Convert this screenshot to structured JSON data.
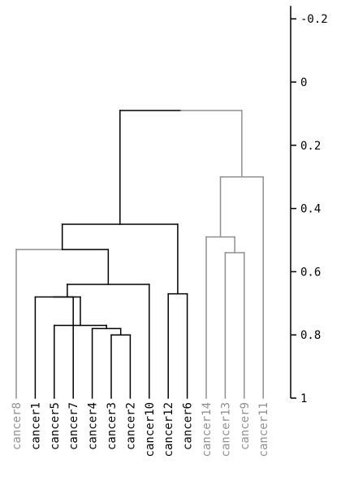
{
  "chart_data": {
    "type": "dendrogram",
    "title": "",
    "xlabel": "",
    "ylabel": "",
    "y_axis": {
      "position": "right",
      "ticks": [
        -0.2,
        0,
        0.2,
        0.4,
        0.6,
        0.8,
        1
      ],
      "tick_labels": [
        "-0.2",
        "0",
        "0.2",
        "0.4",
        "0.6",
        "0.8",
        "1"
      ],
      "range": [
        -0.2,
        1
      ],
      "inverted": true
    },
    "leaves": [
      {
        "label": "cancer8",
        "cluster": "gray"
      },
      {
        "label": "cancer1",
        "cluster": "black"
      },
      {
        "label": "cancer5",
        "cluster": "black"
      },
      {
        "label": "cancer7",
        "cluster": "black"
      },
      {
        "label": "cancer4",
        "cluster": "black"
      },
      {
        "label": "cancer3",
        "cluster": "black"
      },
      {
        "label": "cancer2",
        "cluster": "black"
      },
      {
        "label": "cancer10",
        "cluster": "black"
      },
      {
        "label": "cancer12",
        "cluster": "black"
      },
      {
        "label": "cancer6",
        "cluster": "black"
      },
      {
        "label": "cancer14",
        "cluster": "gray"
      },
      {
        "label": "cancer13",
        "cluster": "gray"
      },
      {
        "label": "cancer9",
        "cluster": "gray"
      },
      {
        "label": "cancer11",
        "cluster": "gray"
      }
    ],
    "leaf_height": 1,
    "merges": [
      {
        "id": "m1",
        "left": "cancer3",
        "right": "cancer2",
        "height": 0.8,
        "color": "black"
      },
      {
        "id": "m2",
        "left": "cancer4",
        "right": "m1",
        "height": 0.78,
        "color": "black"
      },
      {
        "id": "m3",
        "left": "cancer5",
        "right": "m2",
        "height": 0.77,
        "color": "black"
      },
      {
        "id": "m4",
        "left": "cancer12",
        "right": "cancer6",
        "height": 0.67,
        "color": "black"
      },
      {
        "id": "m5",
        "left": "cancer13",
        "right": "cancer9",
        "height": 0.54,
        "color": "gray"
      },
      {
        "id": "m6",
        "left": "cancer1",
        "right": "cancer7",
        "height": 0.68,
        "color": "black"
      },
      {
        "id": "m7",
        "left": "m6",
        "right": "m3",
        "height": 0.68,
        "color": "black"
      },
      {
        "id": "m8",
        "left": "m7",
        "right": "cancer10",
        "height": 0.64,
        "color": "black"
      },
      {
        "id": "m9",
        "left": "cancer8",
        "right": "m8",
        "height": 0.53,
        "color": "gray_black"
      },
      {
        "id": "m10",
        "left": "m9",
        "right": "m4",
        "height": 0.45,
        "color": "black"
      },
      {
        "id": "m11",
        "left": "cancer14",
        "right": "m5",
        "height": 0.49,
        "color": "gray"
      },
      {
        "id": "m12",
        "left": "m11",
        "right": "cancer11",
        "height": 0.3,
        "color": "gray"
      },
      {
        "id": "m13",
        "left": "m10",
        "right": "m12",
        "height": 0.09,
        "color": "black_gray"
      }
    ],
    "colors": {
      "black": "#000000",
      "gray": "#909090",
      "axis": "#000000"
    }
  }
}
